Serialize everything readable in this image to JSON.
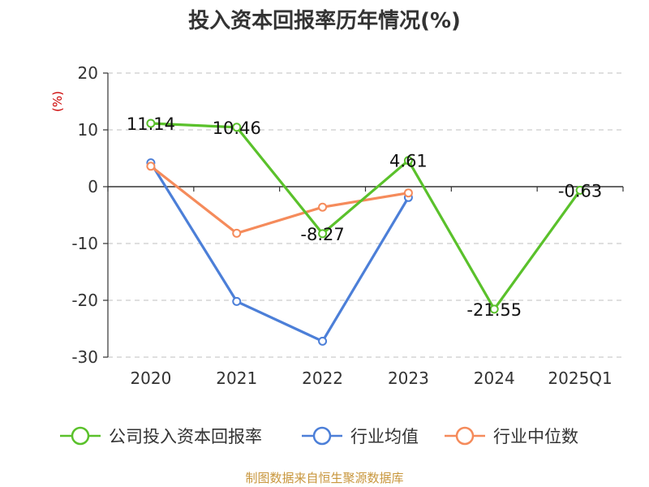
{
  "chart_data": {
    "type": "line",
    "title": "投入资本回报率历年情况(%)",
    "ylabel": "(%)",
    "xlabel": "",
    "categories": [
      "2020",
      "2021",
      "2022",
      "2023",
      "2024",
      "2025Q1"
    ],
    "ylim": [
      -30,
      20
    ],
    "yticks": [
      20,
      10,
      0,
      -10,
      -20,
      -30
    ],
    "grid": true,
    "legend_position": "bottom",
    "series": [
      {
        "name": "公司投入资本回报率",
        "color": "#5ac12b",
        "values": [
          11.14,
          10.46,
          -8.27,
          4.61,
          -21.55,
          -0.63
        ],
        "labels": [
          "11.14",
          "10.46",
          "-8.27",
          "4.61",
          "-21.55",
          "-0.63"
        ]
      },
      {
        "name": "行业均值",
        "color": "#4c7fd8",
        "values": [
          4.2,
          -20.2,
          -27.2,
          -1.9,
          null,
          null
        ]
      },
      {
        "name": "行业中位数",
        "color": "#f58b5b",
        "values": [
          3.6,
          -8.2,
          -3.6,
          -1.1,
          null,
          null
        ]
      }
    ],
    "source": "制图数据来自恒生聚源数据库"
  }
}
